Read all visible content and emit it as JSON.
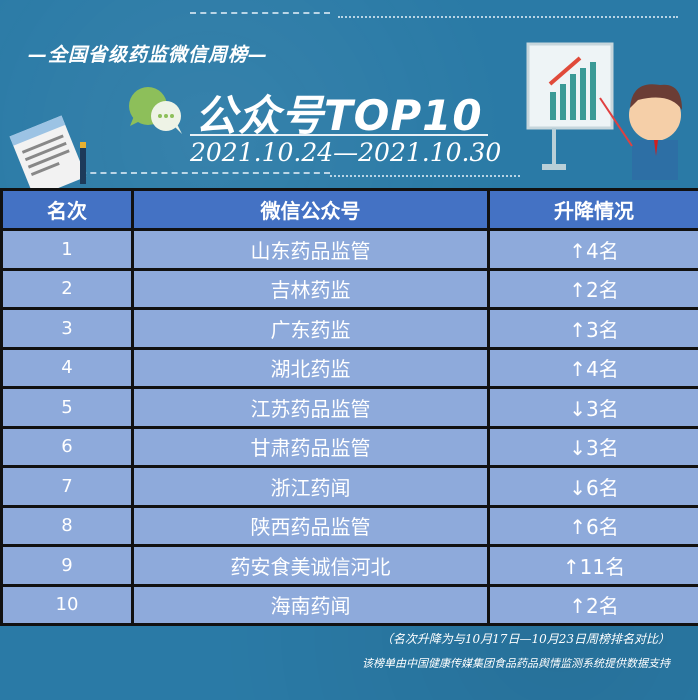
{
  "header": {
    "subtitle": "—全国省级药监微信周榜—",
    "title": "公众号TOP10",
    "date_range": "2021.10.24—2021.10.30"
  },
  "table": {
    "columns": [
      "名次",
      "微信公众号",
      "升降情况"
    ],
    "rows": [
      {
        "rank": "1",
        "name": "山东药品监管",
        "change": "↑4名"
      },
      {
        "rank": "2",
        "name": "吉林药监",
        "change": "↑2名"
      },
      {
        "rank": "3",
        "name": "广东药监",
        "change": "↑3名"
      },
      {
        "rank": "4",
        "name": "湖北药监",
        "change": "↑4名"
      },
      {
        "rank": "5",
        "name": "江苏药品监管",
        "change": "↓3名"
      },
      {
        "rank": "6",
        "name": "甘肃药品监管",
        "change": "↓3名"
      },
      {
        "rank": "7",
        "name": "浙江药闻",
        "change": "↓6名"
      },
      {
        "rank": "8",
        "name": "陕西药品监管",
        "change": "↑6名"
      },
      {
        "rank": "9",
        "name": "药安食美诚信河北",
        "change": "↑11名"
      },
      {
        "rank": "10",
        "name": "海南药闻",
        "change": "↑2名"
      }
    ]
  },
  "footer": {
    "note": "（名次升降为与10月17日—10月23日周榜排名对比）",
    "source": "该榜单由中国健康传媒集团食品药品舆情监测系统提供数据支持"
  },
  "colors": {
    "background": "#2a7aa6",
    "header": "#4472c4",
    "row": "#8eaadb"
  },
  "icons": [
    "wechat-bubble-icon",
    "contract-document-icon",
    "presenter-chart-illustration"
  ]
}
